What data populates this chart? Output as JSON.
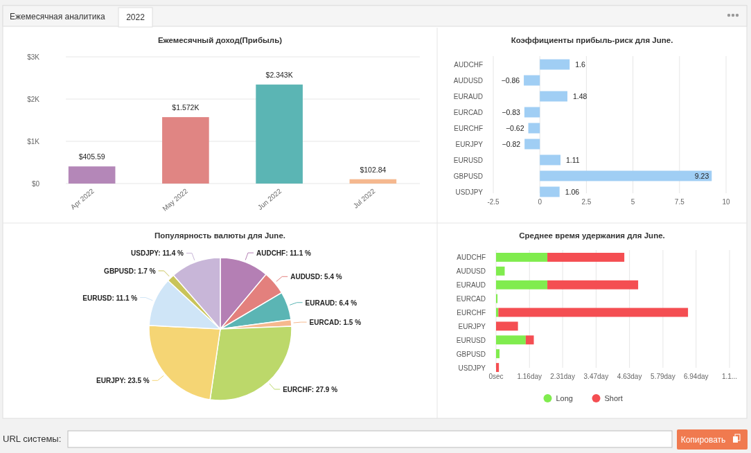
{
  "chart_data": [
    {
      "type": "bar",
      "title": "Ежемесячный доход(Прибыль)",
      "categories": [
        "Apr 2022",
        "May 2022",
        "Jun 2022",
        "Jul 2022"
      ],
      "values": [
        405.59,
        1572,
        2343,
        102.84
      ],
      "colors": [
        "#b487b8",
        "#e08583",
        "#5bb5b4",
        "#f5b88f"
      ],
      "value_labels": [
        "$405.59",
        "$1.572K",
        "$2.343K",
        "$102.84"
      ],
      "ylim": [
        0,
        3000
      ],
      "yticks": [
        {
          "value": 0,
          "label": "$0"
        },
        {
          "value": 1000,
          "label": "$1K"
        },
        {
          "value": 2000,
          "label": "$2K"
        },
        {
          "value": 3000,
          "label": "$3K"
        }
      ],
      "grid": "y"
    },
    {
      "type": "bar",
      "orientation": "horizontal",
      "title": "Коэффициенты прибыль-риск для June.",
      "categories": [
        "AUDCHF",
        "AUDUSD",
        "EURAUD",
        "EURCAD",
        "EURCHF",
        "EURJPY",
        "EURUSD",
        "GBPUSD",
        "USDJPY"
      ],
      "values": [
        1.6,
        -0.86,
        1.48,
        -0.83,
        -0.62,
        -0.82,
        1.11,
        9.23,
        1.06
      ],
      "color": "#a0cef4",
      "value_labels": [
        "1.6",
        "−0.86",
        "1.48",
        "−0.83",
        "−0.62",
        "−0.82",
        "1.11",
        "9.23",
        "1.06"
      ],
      "xlim": [
        -2.5,
        10
      ],
      "xticks": [
        -2.5,
        0,
        2.5,
        5,
        7.5,
        10
      ],
      "grid": "x"
    },
    {
      "type": "pie",
      "title": "Популярность валюты для June.",
      "categories": [
        "AUDCHF",
        "AUDUSD",
        "EURAUD",
        "EURCAD",
        "EURCHF",
        "EURJPY",
        "EURUSD",
        "GBPUSD",
        "USDJPY"
      ],
      "values": [
        11.1,
        5.4,
        6.4,
        1.5,
        27.9,
        23.5,
        11.1,
        1.7,
        11.4
      ],
      "colors": [
        "#b47fb4",
        "#e3807d",
        "#5bb5b4",
        "#f6b88e",
        "#bcd86a",
        "#f5d574",
        "#cfe5f7",
        "#c9c45a",
        "#c8b6d8"
      ],
      "value_labels": [
        "11.1 %",
        "5.4 %",
        "6.4 %",
        "1.5 %",
        "27.9 %",
        "23.5 %",
        "11.1 %",
        "1.7 %",
        "11.4 %"
      ]
    },
    {
      "type": "bar",
      "orientation": "horizontal",
      "stacked": true,
      "title": "Среднее время удержания для June.",
      "categories": [
        "AUDCHF",
        "AUDUSD",
        "EURAUD",
        "EURCAD",
        "EURCHF",
        "EURJPY",
        "EURUSD",
        "GBPUSD",
        "USDJPY"
      ],
      "series": [
        {
          "name": "Long",
          "color": "#80ec4e",
          "values": [
            1.78,
            0.3,
            1.78,
            0.05,
            0.08,
            0,
            1.03,
            0.12,
            0
          ]
        },
        {
          "name": "Short",
          "color": "#f44e52",
          "values": [
            2.67,
            0,
            3.15,
            0,
            6.58,
            0.76,
            0.28,
            0,
            0.1
          ]
        }
      ],
      "xlim": [
        0,
        8.1
      ],
      "xticks": [
        {
          "value": 0,
          "label": "0sec"
        },
        {
          "value": 1.16,
          "label": "1.16day"
        },
        {
          "value": 2.31,
          "label": "2.31day"
        },
        {
          "value": 3.47,
          "label": "3.47day"
        },
        {
          "value": 4.63,
          "label": "4.63day"
        },
        {
          "value": 5.79,
          "label": "5.79day"
        },
        {
          "value": 6.94,
          "label": "6.94day"
        },
        {
          "value": 8.1,
          "label": "1.1..."
        }
      ],
      "grid": "x",
      "legend": "bottom"
    },
    {
      "type": "other",
      "annotations": [
        "Ежемесячная аналитика",
        "2022",
        "URL системы:",
        "Копировать"
      ]
    }
  ]
}
